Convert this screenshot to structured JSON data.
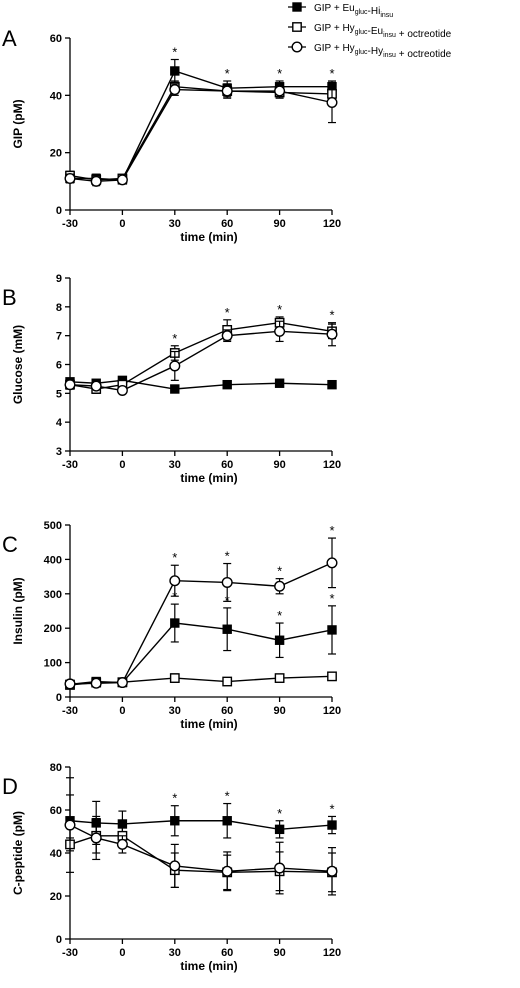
{
  "legend": [
    {
      "marker": "square-filled",
      "parts": [
        {
          "t": "GIP + Eu"
        },
        {
          "t": "gluc",
          "sub": true
        },
        {
          "t": "-Hi"
        },
        {
          "t": "insu",
          "sub": true
        }
      ]
    },
    {
      "marker": "square-open",
      "parts": [
        {
          "t": "GIP + Hy"
        },
        {
          "t": "gluc",
          "sub": true
        },
        {
          "t": "-Eu"
        },
        {
          "t": "insu",
          "sub": true
        },
        {
          "t": " + octreotide"
        }
      ]
    },
    {
      "marker": "circle-open",
      "parts": [
        {
          "t": "GIP + Hy"
        },
        {
          "t": "gluc",
          "sub": true
        },
        {
          "t": "-Hy"
        },
        {
          "t": "insu",
          "sub": true
        },
        {
          "t": " + octreotide"
        }
      ]
    }
  ],
  "chart_data": [
    {
      "type": "line",
      "panel": "A",
      "ylabel": "GIP (pM)",
      "xlabel": "time (min)",
      "x": [
        -30,
        -15,
        0,
        30,
        60,
        90,
        120
      ],
      "xticks": [
        -30,
        0,
        30,
        60,
        90,
        120
      ],
      "ylim": [
        0,
        60
      ],
      "yticks": [
        0,
        20,
        40,
        60
      ],
      "significance": [
        30,
        60,
        90,
        120
      ],
      "series": [
        {
          "marker": "square-filled",
          "values": [
            11,
            11,
            10.5,
            48.5,
            42.5,
            43,
            43
          ],
          "err": [
            1.5,
            1.5,
            1,
            4,
            2.5,
            2,
            2
          ]
        },
        {
          "marker": "square-open",
          "values": [
            12,
            10.5,
            11,
            43,
            41.5,
            41,
            40.5
          ],
          "err": [
            1.5,
            1.5,
            1,
            2,
            2,
            2,
            2.5
          ]
        },
        {
          "marker": "circle-open",
          "values": [
            11,
            10,
            10.5,
            42,
            41.5,
            41.5,
            37.5
          ],
          "err": [
            1.5,
            1.5,
            1,
            2,
            2.5,
            2,
            7
          ]
        }
      ]
    },
    {
      "type": "line",
      "panel": "B",
      "ylabel": "Glucose (mM)",
      "xlabel": "time (min)",
      "x": [
        -30,
        -15,
        0,
        30,
        60,
        90,
        120
      ],
      "xticks": [
        -30,
        0,
        30,
        60,
        90,
        120
      ],
      "ylim": [
        3,
        9
      ],
      "yticks": [
        3,
        4,
        5,
        6,
        7,
        8,
        9
      ],
      "significance": [
        30,
        60,
        90,
        120
      ],
      "series": [
        {
          "marker": "square-filled",
          "values": [
            5.4,
            5.35,
            5.45,
            5.15,
            5.3,
            5.35,
            5.3
          ],
          "err": [
            0.1,
            0.1,
            0.1,
            0.1,
            0.1,
            0.1,
            0.1
          ]
        },
        {
          "marker": "square-open",
          "values": [
            5.3,
            5.15,
            5.3,
            6.4,
            7.2,
            7.45,
            7.15
          ],
          "err": [
            0.15,
            0.15,
            0.1,
            0.25,
            0.35,
            0.2,
            0.25
          ]
        },
        {
          "marker": "circle-open",
          "values": [
            5.3,
            5.25,
            5.1,
            5.95,
            7.0,
            7.15,
            7.05
          ],
          "err": [
            0.15,
            0.1,
            0.1,
            0.5,
            0.2,
            0.35,
            0.4
          ]
        }
      ]
    },
    {
      "type": "line",
      "panel": "C",
      "ylabel": "Insulin (pM)",
      "xlabel": "time (min)",
      "x": [
        -30,
        -15,
        0,
        30,
        60,
        90,
        120
      ],
      "xticks": [
        -30,
        0,
        30,
        60,
        90,
        120
      ],
      "ylim": [
        0,
        500
      ],
      "yticks": [
        0,
        100,
        200,
        300,
        400,
        500
      ],
      "significance": [
        30,
        60,
        90,
        120
      ],
      "significance_rows": 2,
      "series": [
        {
          "marker": "square-filled",
          "values": [
            37,
            45,
            42,
            215,
            197,
            165,
            195
          ],
          "err": [
            5,
            8,
            6,
            55,
            62,
            50,
            70
          ]
        },
        {
          "marker": "square-open",
          "values": [
            35,
            42,
            43,
            55,
            45,
            55,
            60
          ],
          "err": [
            5,
            6,
            5,
            12,
            8,
            10,
            10
          ]
        },
        {
          "marker": "circle-open",
          "values": [
            38,
            40,
            42,
            338,
            333,
            322,
            390
          ],
          "err": [
            5,
            6,
            5,
            45,
            55,
            22,
            72
          ]
        }
      ]
    },
    {
      "type": "line",
      "panel": "D",
      "ylabel": "C-peptide (pM)",
      "xlabel": "time (min)",
      "x": [
        -30,
        -15,
        0,
        30,
        60,
        90,
        120
      ],
      "xticks": [
        -30,
        0,
        30,
        60,
        90,
        120
      ],
      "ylim": [
        0,
        80
      ],
      "yticks": [
        0,
        20,
        40,
        60,
        80
      ],
      "significance": [
        30,
        60,
        90,
        120
      ],
      "series": [
        {
          "marker": "square-filled",
          "values": [
            55,
            54,
            53.5,
            55,
            55,
            51,
            53
          ],
          "err": [
            12,
            10,
            6,
            7,
            8,
            4,
            4
          ]
        },
        {
          "marker": "square-open",
          "values": [
            44,
            48,
            48,
            32,
            31,
            31.5,
            31
          ],
          "err": [
            3,
            8,
            5,
            8,
            8,
            9,
            9
          ]
        },
        {
          "marker": "circle-open",
          "values": [
            53,
            47,
            44,
            34,
            31.5,
            33,
            31.5
          ],
          "err": [
            22,
            10,
            4,
            10,
            9,
            12,
            11
          ]
        }
      ]
    }
  ]
}
